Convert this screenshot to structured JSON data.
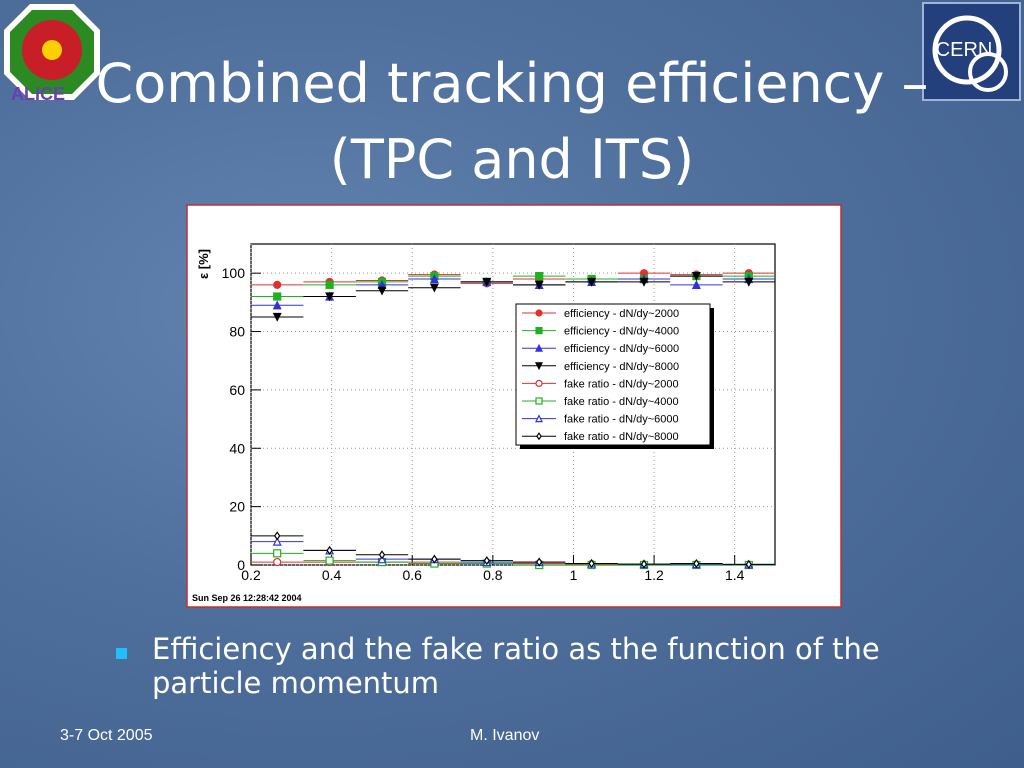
{
  "slide": {
    "title": [
      "Combined tracking efficiency –",
      "(TPC and ITS)"
    ],
    "logo_left": "ALICE",
    "logo_right": "CERN",
    "bullet": "Efficiency and the fake ratio as the function of the particle momentum",
    "footer_left": "3-7 Oct 2005",
    "footer_right": "M. Ivanov"
  },
  "chart_data": {
    "type": "scatter",
    "y_label": "ε [%]",
    "timestamp": "Sun Sep 26 12:28:42 2004",
    "x": [
      0.265,
      0.395,
      0.525,
      0.655,
      0.785,
      0.915,
      1.045,
      1.175,
      1.305,
      1.435
    ],
    "xlim": [
      0.2,
      1.5
    ],
    "xticks": [
      0.2,
      0.4,
      0.6,
      0.8,
      1,
      1.2,
      1.4
    ],
    "ylim": [
      0,
      110
    ],
    "yticks": [
      0,
      20,
      40,
      60,
      80,
      100
    ],
    "grid": true,
    "legend": "right",
    "series": [
      {
        "name": "efficiency - dN/dy~2000",
        "color": "#e03030",
        "marker": "circle",
        "filled": true,
        "values": [
          96,
          97,
          97.5,
          99.5,
          96.5,
          98,
          98,
          100,
          99.5,
          100
        ]
      },
      {
        "name": "efficiency - dN/dy~4000",
        "color": "#20b020",
        "marker": "square",
        "filled": true,
        "values": [
          92,
          96,
          97,
          99,
          97,
          99,
          98,
          98,
          99,
          99
        ]
      },
      {
        "name": "efficiency - dN/dy~6000",
        "color": "#3030e0",
        "marker": "triangle-up",
        "filled": true,
        "values": [
          89,
          92,
          96,
          98,
          97,
          96,
          97,
          98,
          96,
          98
        ]
      },
      {
        "name": "efficiency - dN/dy~8000",
        "color": "#000000",
        "marker": "triangle-down",
        "filled": true,
        "values": [
          85,
          92,
          94,
          95,
          97,
          96,
          97,
          97,
          99,
          97
        ]
      },
      {
        "name": "fake ratio - dN/dy~2000",
        "color": "#e03030",
        "marker": "circle",
        "filled": false,
        "values": [
          1,
          1,
          1,
          1,
          0.5,
          0.5,
          0.3,
          0.2,
          0.2,
          0.1
        ]
      },
      {
        "name": "fake ratio - dN/dy~4000",
        "color": "#20b020",
        "marker": "square",
        "filled": false,
        "values": [
          4,
          1.5,
          1,
          0.5,
          0.5,
          0,
          0,
          0,
          0,
          0
        ]
      },
      {
        "name": "fake ratio - dN/dy~6000",
        "color": "#3030e0",
        "marker": "triangle-up",
        "filled": false,
        "values": [
          8,
          5,
          2,
          2,
          1,
          1,
          0.5,
          0.3,
          0.3,
          0.2
        ]
      },
      {
        "name": "fake ratio - dN/dy~8000",
        "color": "#000000",
        "marker": "diamond",
        "filled": false,
        "values": [
          10,
          5,
          3.5,
          2,
          1.5,
          1,
          0.5,
          0.3,
          0.5,
          0.2
        ]
      }
    ]
  }
}
